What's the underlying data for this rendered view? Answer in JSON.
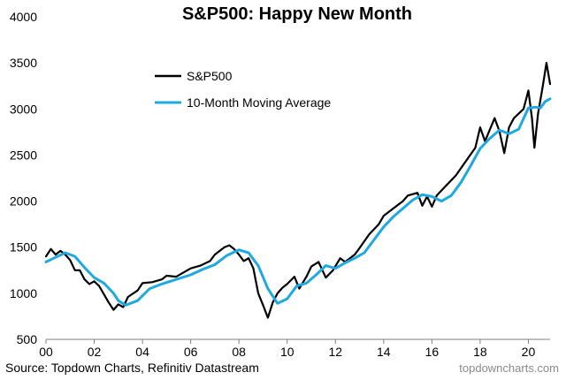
{
  "chart_data": {
    "type": "line",
    "title": "S&P500: Happy New Month",
    "xlabel": "",
    "ylabel": "",
    "xlim": [
      2000,
      2020.9
    ],
    "ylim": [
      500,
      4000
    ],
    "y_ticks": [
      500,
      1000,
      1500,
      2000,
      2500,
      3000,
      3500,
      4000
    ],
    "x_ticks": [
      2000,
      2002,
      2004,
      2006,
      2008,
      2010,
      2012,
      2014,
      2016,
      2018,
      2020
    ],
    "x_tick_labels": [
      "00",
      "02",
      "04",
      "06",
      "08",
      "10",
      "12",
      "14",
      "16",
      "18",
      "20"
    ],
    "grid": false,
    "legend_position": "top-left",
    "series": [
      {
        "name": "S&P500",
        "color": "#000000",
        "points": [
          [
            2000.0,
            1400
          ],
          [
            2000.2,
            1480
          ],
          [
            2000.4,
            1420
          ],
          [
            2000.6,
            1460
          ],
          [
            2000.8,
            1420
          ],
          [
            2001.0,
            1360
          ],
          [
            2001.2,
            1250
          ],
          [
            2001.4,
            1250
          ],
          [
            2001.6,
            1150
          ],
          [
            2001.8,
            1100
          ],
          [
            2002.0,
            1130
          ],
          [
            2002.2,
            1080
          ],
          [
            2002.4,
            990
          ],
          [
            2002.6,
            900
          ],
          [
            2002.8,
            820
          ],
          [
            2003.0,
            880
          ],
          [
            2003.2,
            850
          ],
          [
            2003.4,
            960
          ],
          [
            2003.8,
            1030
          ],
          [
            2004.0,
            1110
          ],
          [
            2004.4,
            1120
          ],
          [
            2004.8,
            1150
          ],
          [
            2005.0,
            1190
          ],
          [
            2005.4,
            1180
          ],
          [
            2006.0,
            1270
          ],
          [
            2006.4,
            1300
          ],
          [
            2006.8,
            1350
          ],
          [
            2007.0,
            1420
          ],
          [
            2007.4,
            1500
          ],
          [
            2007.6,
            1520
          ],
          [
            2007.8,
            1480
          ],
          [
            2008.0,
            1420
          ],
          [
            2008.2,
            1350
          ],
          [
            2008.4,
            1380
          ],
          [
            2008.6,
            1270
          ],
          [
            2008.8,
            1000
          ],
          [
            2009.0,
            870
          ],
          [
            2009.2,
            735
          ],
          [
            2009.4,
            900
          ],
          [
            2009.6,
            1000
          ],
          [
            2009.8,
            1060
          ],
          [
            2010.0,
            1100
          ],
          [
            2010.3,
            1180
          ],
          [
            2010.5,
            1050
          ],
          [
            2010.8,
            1180
          ],
          [
            2011.0,
            1290
          ],
          [
            2011.3,
            1340
          ],
          [
            2011.6,
            1170
          ],
          [
            2011.9,
            1250
          ],
          [
            2012.2,
            1380
          ],
          [
            2012.4,
            1340
          ],
          [
            2012.8,
            1420
          ],
          [
            2013.0,
            1490
          ],
          [
            2013.4,
            1640
          ],
          [
            2013.8,
            1750
          ],
          [
            2014.0,
            1840
          ],
          [
            2014.4,
            1920
          ],
          [
            2014.8,
            2000
          ],
          [
            2015.0,
            2060
          ],
          [
            2015.4,
            2090
          ],
          [
            2015.6,
            1950
          ],
          [
            2015.8,
            2050
          ],
          [
            2016.0,
            1940
          ],
          [
            2016.2,
            2060
          ],
          [
            2016.6,
            2170
          ],
          [
            2017.0,
            2280
          ],
          [
            2017.4,
            2430
          ],
          [
            2017.8,
            2580
          ],
          [
            2018.0,
            2800
          ],
          [
            2018.2,
            2650
          ],
          [
            2018.6,
            2900
          ],
          [
            2018.8,
            2760
          ],
          [
            2019.0,
            2520
          ],
          [
            2019.2,
            2800
          ],
          [
            2019.4,
            2900
          ],
          [
            2019.8,
            3000
          ],
          [
            2020.0,
            3200
          ],
          [
            2020.15,
            2900
          ],
          [
            2020.25,
            2580
          ],
          [
            2020.4,
            2950
          ],
          [
            2020.6,
            3250
          ],
          [
            2020.75,
            3500
          ],
          [
            2020.9,
            3270
          ]
        ]
      },
      {
        "name": "10-Month Moving Average",
        "color": "#1fa9e1",
        "points": [
          [
            2000.0,
            1340
          ],
          [
            2000.4,
            1390
          ],
          [
            2000.8,
            1440
          ],
          [
            2001.2,
            1400
          ],
          [
            2001.6,
            1280
          ],
          [
            2002.0,
            1170
          ],
          [
            2002.4,
            1110
          ],
          [
            2002.8,
            1000
          ],
          [
            2003.0,
            920
          ],
          [
            2003.3,
            870
          ],
          [
            2003.8,
            920
          ],
          [
            2004.3,
            1050
          ],
          [
            2004.8,
            1100
          ],
          [
            2005.4,
            1150
          ],
          [
            2006.0,
            1200
          ],
          [
            2006.5,
            1260
          ],
          [
            2007.0,
            1310
          ],
          [
            2007.5,
            1410
          ],
          [
            2008.0,
            1470
          ],
          [
            2008.4,
            1440
          ],
          [
            2008.8,
            1300
          ],
          [
            2009.2,
            1050
          ],
          [
            2009.6,
            890
          ],
          [
            2010.0,
            940
          ],
          [
            2010.4,
            1080
          ],
          [
            2010.8,
            1110
          ],
          [
            2011.2,
            1200
          ],
          [
            2011.6,
            1300
          ],
          [
            2012.0,
            1270
          ],
          [
            2012.4,
            1330
          ],
          [
            2012.8,
            1380
          ],
          [
            2013.2,
            1440
          ],
          [
            2013.6,
            1580
          ],
          [
            2014.0,
            1720
          ],
          [
            2014.4,
            1830
          ],
          [
            2014.8,
            1920
          ],
          [
            2015.2,
            2010
          ],
          [
            2015.6,
            2070
          ],
          [
            2016.0,
            2050
          ],
          [
            2016.4,
            2000
          ],
          [
            2016.8,
            2060
          ],
          [
            2017.2,
            2200
          ],
          [
            2017.6,
            2380
          ],
          [
            2018.0,
            2570
          ],
          [
            2018.4,
            2680
          ],
          [
            2018.8,
            2770
          ],
          [
            2019.2,
            2730
          ],
          [
            2019.6,
            2780
          ],
          [
            2020.0,
            3010
          ],
          [
            2020.3,
            3020
          ],
          [
            2020.5,
            3010
          ],
          [
            2020.7,
            3080
          ],
          [
            2020.9,
            3110
          ]
        ]
      }
    ]
  },
  "footer": {
    "source": "Source: Topdown Charts, Refinitiv Datastream",
    "brand": "topdowncharts.com"
  }
}
